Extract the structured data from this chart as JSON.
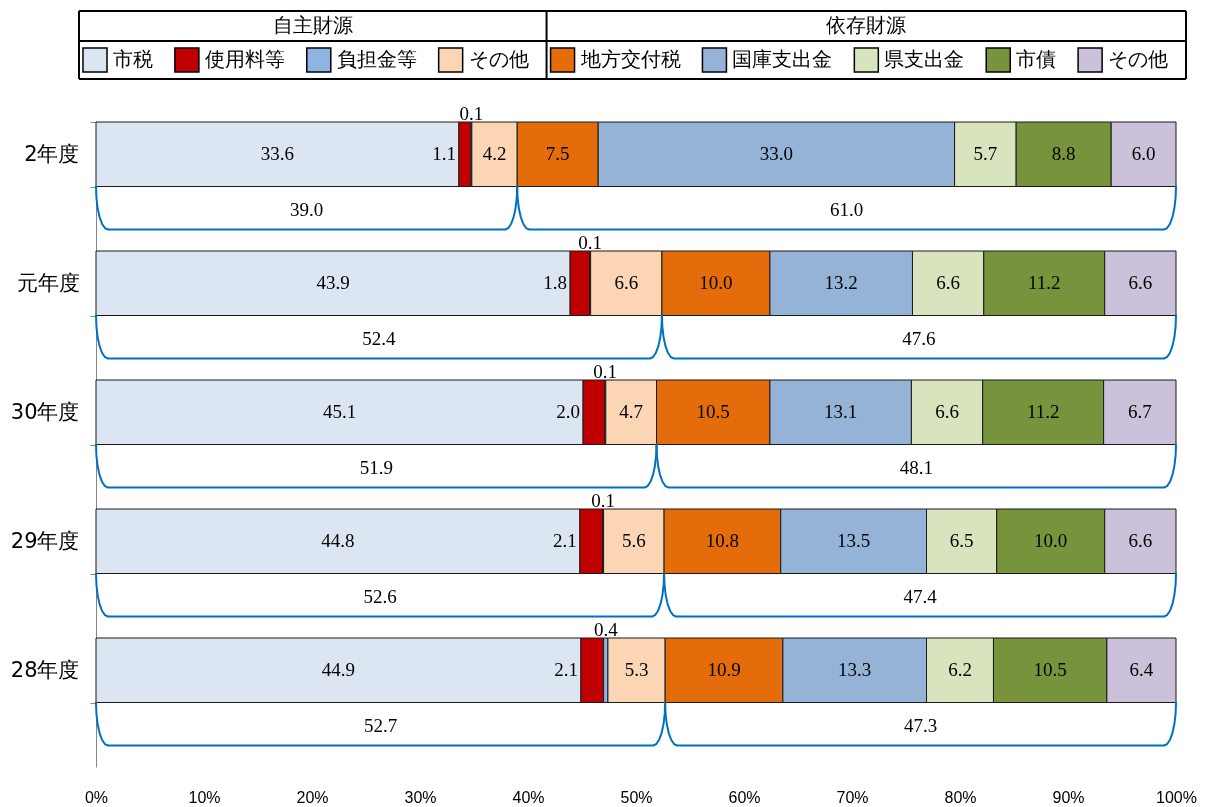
{
  "chart_data": {
    "type": "bar",
    "orientation": "horizontal",
    "stacked": true,
    "categories": [
      "2年度",
      "元年度",
      "30年度",
      "29年度",
      "28年度"
    ],
    "series": [
      {
        "name": "市税",
        "color": "#dce6f2",
        "values": [
          33.6,
          43.9,
          45.1,
          44.8,
          44.9
        ],
        "value_labels": [
          "33.6",
          "43.9",
          "45.1",
          "44.8",
          "44.9"
        ]
      },
      {
        "name": "使用料等",
        "color": "#c00000",
        "values": [
          1.1,
          1.8,
          2.0,
          2.1,
          2.1
        ],
        "value_labels": [
          "1.1",
          "1.8",
          "2.0",
          "2.1",
          "2.1"
        ]
      },
      {
        "name": "負担金等",
        "color": "#8eb4e3",
        "values": [
          0.1,
          0.1,
          0.1,
          0.1,
          0.4
        ],
        "value_labels": [
          "0.1",
          "0.1",
          "0.1",
          "0.1",
          "0.4"
        ]
      },
      {
        "name": "その他",
        "color": "#fcd5b5",
        "values": [
          4.2,
          6.6,
          4.7,
          5.6,
          5.3
        ],
        "value_labels": [
          "4.2",
          "6.6",
          "4.7",
          "5.6",
          "5.3"
        ]
      },
      {
        "name": "地方交付税",
        "color": "#e46c0a",
        "values": [
          7.5,
          10.0,
          10.5,
          10.8,
          10.9
        ],
        "value_labels": [
          "7.5",
          "10.0",
          "10.5",
          "10.8",
          "10.9"
        ]
      },
      {
        "name": "国庫支出金",
        "color": "#95b3d7",
        "values": [
          33.0,
          13.2,
          13.1,
          13.5,
          13.3
        ],
        "value_labels": [
          "33.0",
          "13.2",
          "13.1",
          "13.5",
          "13.3"
        ]
      },
      {
        "name": "県支出金",
        "color": "#d7e4bd",
        "values": [
          5.7,
          6.6,
          6.6,
          6.5,
          6.2
        ],
        "value_labels": [
          "5.7",
          "6.6",
          "6.6",
          "6.5",
          "6.2"
        ]
      },
      {
        "name": "市債",
        "color": "#77933c",
        "values": [
          8.8,
          11.2,
          11.2,
          10.0,
          10.5
        ],
        "value_labels": [
          "8.8",
          "11.2",
          "11.2",
          "10.0",
          "10.5"
        ]
      },
      {
        "name": "その他",
        "color": "#ccc1da",
        "values": [
          6.0,
          6.6,
          6.7,
          6.6,
          6.4
        ],
        "value_labels": [
          "6.0",
          "6.6",
          "6.7",
          "6.6",
          "6.4"
        ]
      }
    ],
    "xlim": [
      0,
      100
    ],
    "xticks": [
      {
        "value": 0,
        "label": "0%"
      },
      {
        "value": 10,
        "label": "10%"
      },
      {
        "value": 20,
        "label": "20%"
      },
      {
        "value": 30,
        "label": "30%"
      },
      {
        "value": 40,
        "label": "40%"
      },
      {
        "value": 50,
        "label": "50%"
      },
      {
        "value": 60,
        "label": "60%"
      },
      {
        "value": 70,
        "label": "70%"
      },
      {
        "value": 80,
        "label": "80%"
      },
      {
        "value": 90,
        "label": "90%"
      },
      {
        "value": 100,
        "label": "100%"
      }
    ],
    "legend": "top",
    "annotations": [
      "自主財源",
      "依存財源",
      "39.0",
      "61.0",
      "52.4",
      "47.6",
      "51.9",
      "48.1",
      "52.6",
      "47.4",
      "52.7",
      "47.3"
    ]
  }
}
